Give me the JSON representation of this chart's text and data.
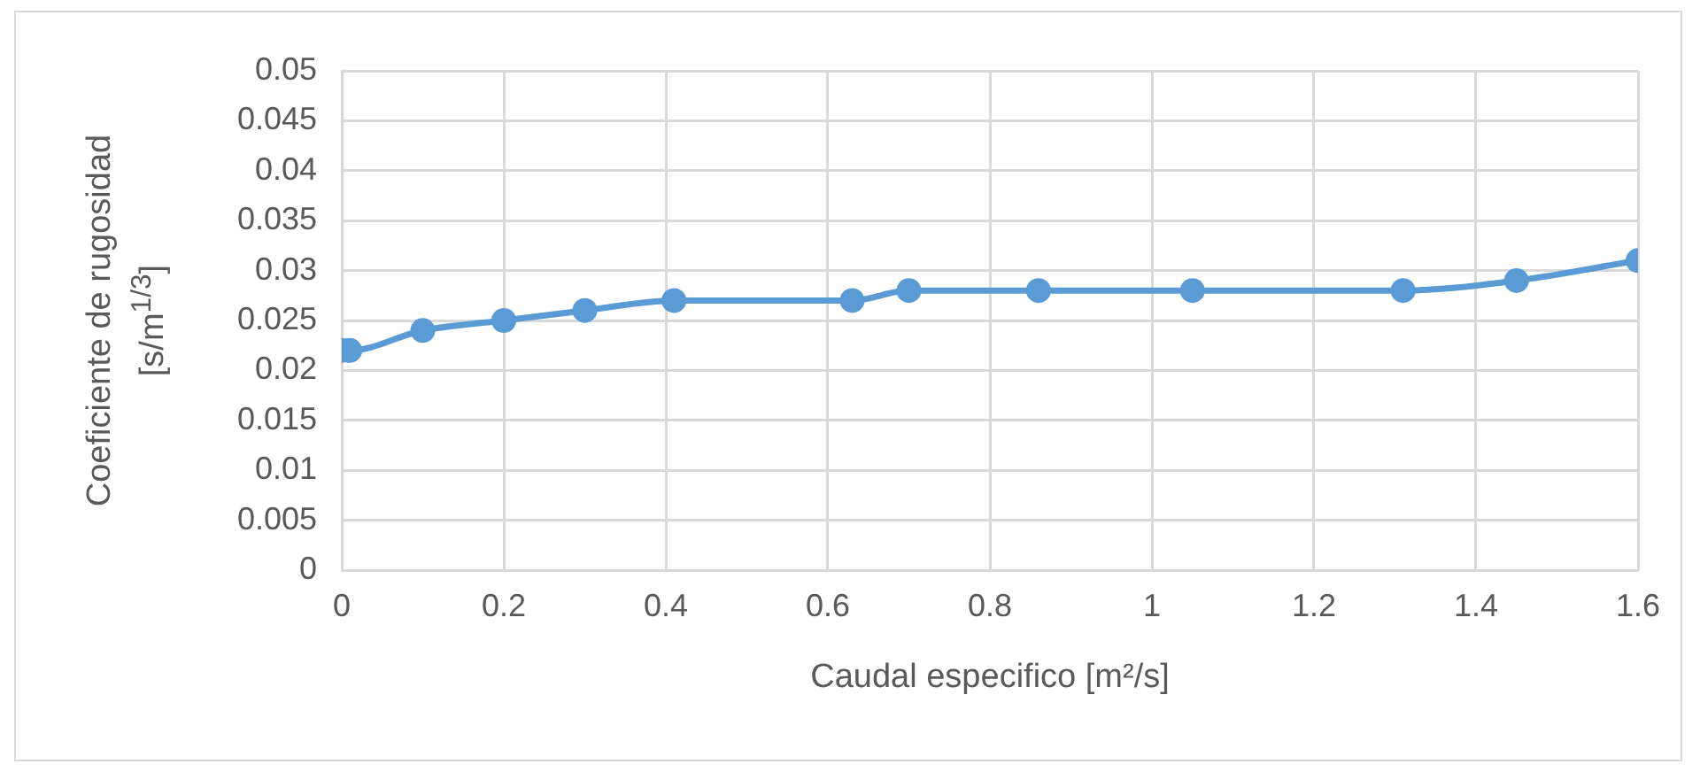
{
  "chart_data": {
    "type": "line",
    "xlabel": "Caudal especifico [m²/s]",
    "ylabel": "Coeficiente de rugosidad [s/m$^{1/3}$]",
    "x": [
      0,
      0.01,
      0.1,
      0.2,
      0.3,
      0.41,
      0.63,
      0.7,
      0.86,
      1.05,
      1.31,
      1.45,
      1.6
    ],
    "series": [
      {
        "color": "#5b9bd5",
        "values": [
          0.022,
          0.022,
          0.024,
          0.025,
          0.026,
          0.027,
          0.027,
          0.028,
          0.028,
          0.028,
          0.028,
          0.029,
          0.031
        ]
      }
    ],
    "xlim": [
      0,
      1.6
    ],
    "xticks": [
      0,
      0.2,
      0.4,
      0.6,
      0.8,
      1,
      1.2,
      1.4,
      1.6
    ],
    "ylim": [
      0,
      0.05
    ],
    "yticks": [
      0,
      0.005,
      0.01,
      0.015,
      0.02,
      0.025,
      0.03,
      0.035,
      0.04,
      0.045,
      0.05
    ],
    "grid": true,
    "legend": false,
    "marker": "circle",
    "line_style": "solid"
  }
}
